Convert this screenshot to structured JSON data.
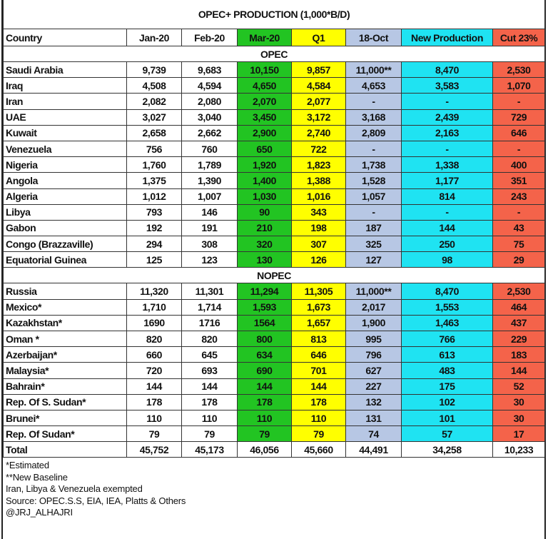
{
  "title": "OPEC+ PRODUCTION (1,000*B/D)",
  "colors": {
    "mar": "#22c422",
    "q1": "#ffff00",
    "oct": "#b7c7e4",
    "new": "#1fe3f2",
    "cut": "#f4634a"
  },
  "columns": [
    "Country",
    "Jan-20",
    "Feb-20",
    "Mar-20",
    "Q1",
    "18-Oct",
    "New Production",
    "Cut 23%"
  ],
  "sections": [
    {
      "label": "OPEC",
      "rows": [
        [
          "Saudi Arabia",
          "9,739",
          "9,683",
          "10,150",
          "9,857",
          "11,000**",
          "8,470",
          "2,530"
        ],
        [
          "Iraq",
          "4,508",
          "4,594",
          "4,650",
          "4,584",
          "4,653",
          "3,583",
          "1,070"
        ],
        [
          "Iran",
          "2,082",
          "2,080",
          "2,070",
          "2,077",
          "-",
          "-",
          "-"
        ],
        [
          "UAE",
          "3,027",
          "3,040",
          "3,450",
          "3,172",
          "3,168",
          "2,439",
          "729"
        ],
        [
          "Kuwait",
          "2,658",
          "2,662",
          "2,900",
          "2,740",
          "2,809",
          "2,163",
          "646"
        ],
        [
          "Venezuela",
          "756",
          "760",
          "650",
          "722",
          "-",
          "-",
          "-"
        ],
        [
          "Nigeria",
          "1,760",
          "1,789",
          "1,920",
          "1,823",
          "1,738",
          "1,338",
          "400"
        ],
        [
          "Angola",
          "1,375",
          "1,390",
          "1,400",
          "1,388",
          "1,528",
          "1,177",
          "351"
        ],
        [
          "Algeria",
          "1,012",
          "1,007",
          "1,030",
          "1,016",
          "1,057",
          "814",
          "243"
        ],
        [
          "Libya",
          "793",
          "146",
          "90",
          "343",
          "-",
          "-",
          "-"
        ],
        [
          "Gabon",
          "192",
          "191",
          "210",
          "198",
          "187",
          "144",
          "43"
        ],
        [
          "Congo (Brazzaville)",
          "294",
          "308",
          "320",
          "307",
          "325",
          "250",
          "75"
        ],
        [
          "Equatorial Guinea",
          "125",
          "123",
          "130",
          "126",
          "127",
          "98",
          "29"
        ]
      ]
    },
    {
      "label": "NOPEC",
      "rows": [
        [
          "Russia",
          "11,320",
          "11,301",
          "11,294",
          "11,305",
          "11,000**",
          "8,470",
          "2,530"
        ],
        [
          "Mexico*",
          "1,710",
          "1,714",
          "1,593",
          "1,673",
          "2,017",
          "1,553",
          "464"
        ],
        [
          "Kazakhstan*",
          "1690",
          "1716",
          "1564",
          "1,657",
          "1,900",
          "1,463",
          "437"
        ],
        [
          "Oman *",
          "820",
          "820",
          "800",
          "813",
          "995",
          "766",
          "229"
        ],
        [
          "Azerbaijan*",
          "660",
          "645",
          "634",
          "646",
          "796",
          "613",
          "183"
        ],
        [
          "Malaysia*",
          "720",
          "693",
          "690",
          "701",
          "627",
          "483",
          "144"
        ],
        [
          "Bahrain*",
          "144",
          "144",
          "144",
          "144",
          "227",
          "175",
          "52"
        ],
        [
          "Rep. Of S. Sudan*",
          "178",
          "178",
          "178",
          "178",
          "132",
          "102",
          "30"
        ],
        [
          "Brunei*",
          "110",
          "110",
          "110",
          "110",
          "131",
          "101",
          "30"
        ],
        [
          "Rep. Of Sudan*",
          "79",
          "79",
          "79",
          "79",
          "74",
          "57",
          "17"
        ]
      ]
    }
  ],
  "total": [
    "Total",
    "45,752",
    "45,173",
    "46,056",
    "45,660",
    "44,491",
    "34,258",
    "10,233"
  ],
  "notes": [
    "*Estimated",
    "**New Baseline",
    "Iran, Libya & Venezuela exempted",
    "Source: OPEC.S.S, EIA, IEA, Platts & Others",
    "@JRJ_ALHAJRI"
  ]
}
